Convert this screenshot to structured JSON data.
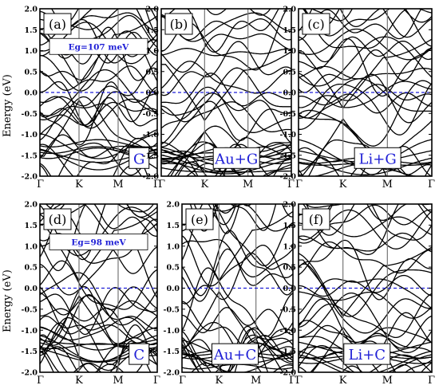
{
  "ylabel": "Energy (eV)",
  "chart_data": [
    {
      "panel_label": "(a)",
      "system": "G",
      "type": "line",
      "xticks": [
        "Γ",
        "K",
        "M",
        "Γ"
      ],
      "yticks": [
        "2.0",
        "1.5",
        "1.0",
        "0.5",
        "0.0",
        "-0.5",
        "-1.0",
        "-1.5",
        "-2.0"
      ],
      "ylim": [
        -2.0,
        2.0
      ],
      "fermi_level": 0.0,
      "gap_label": "Eg=107 meV",
      "band_gap_meV": 107,
      "dirac_energy_eV": 0.0
    },
    {
      "panel_label": "(b)",
      "system": "Au+G",
      "type": "line",
      "xticks": [
        "Γ",
        "K",
        "M",
        "Γ"
      ],
      "yticks": [
        "2.0",
        "1.5",
        "1.0",
        "0.5",
        "0.0",
        "-0.5",
        "-1.0",
        "-1.5",
        "-2.0"
      ],
      "ylim": [
        -2.0,
        2.0
      ],
      "fermi_level": 0.0,
      "dirac_energy_eV": -0.8
    },
    {
      "panel_label": "(c)",
      "system": "Li+G",
      "type": "line",
      "xticks": [
        "Γ",
        "K",
        "M",
        "Γ"
      ],
      "yticks": [
        "2.0",
        "1.5",
        "1.0",
        "0.5",
        "0.0",
        "-0.5",
        "-1.0",
        "-1.5",
        "-2.0"
      ],
      "ylim": [
        -2.0,
        2.0
      ],
      "fermi_level": 0.0,
      "dirac_energy_eV": -0.5
    },
    {
      "panel_label": "(d)",
      "system": "C",
      "type": "line",
      "xticks": [
        "Γ",
        "K",
        "M",
        "Γ"
      ],
      "yticks": [
        "2.0",
        "1.5",
        "1.0",
        "0.5",
        "0.0",
        "-0.5",
        "-1.0",
        "-1.5",
        "-2.0"
      ],
      "ylim": [
        -2.0,
        2.0
      ],
      "fermi_level": 0.0,
      "gap_label": "Eg=98 meV",
      "band_gap_meV": 98,
      "dirac_energy_eV": 0.0
    },
    {
      "panel_label": "(e)",
      "system": "Au+C",
      "type": "line",
      "xticks": [
        "Γ",
        "K",
        "M",
        "Γ"
      ],
      "yticks": [
        "2.0",
        "1.5",
        "1.0",
        "0.5",
        "0.0",
        "-0.5",
        "-1.0",
        "-1.5",
        "-2.0"
      ],
      "ylim": [
        -2.0,
        2.0
      ],
      "fermi_level": 0.0,
      "dirac_energy_eV": 0.05
    },
    {
      "panel_label": "(f)",
      "system": "Li+C",
      "type": "line",
      "xticks": [
        "Γ",
        "K",
        "M",
        "Γ"
      ],
      "yticks": [
        "2.0",
        "1.5",
        "1.0",
        "0.5",
        "0.0",
        "-0.5",
        "-1.0",
        "-1.5",
        "-2.0"
      ],
      "ylim": [
        -2.0,
        2.0
      ],
      "fermi_level": 0.0,
      "dirac_energy_eV": -0.8
    }
  ]
}
